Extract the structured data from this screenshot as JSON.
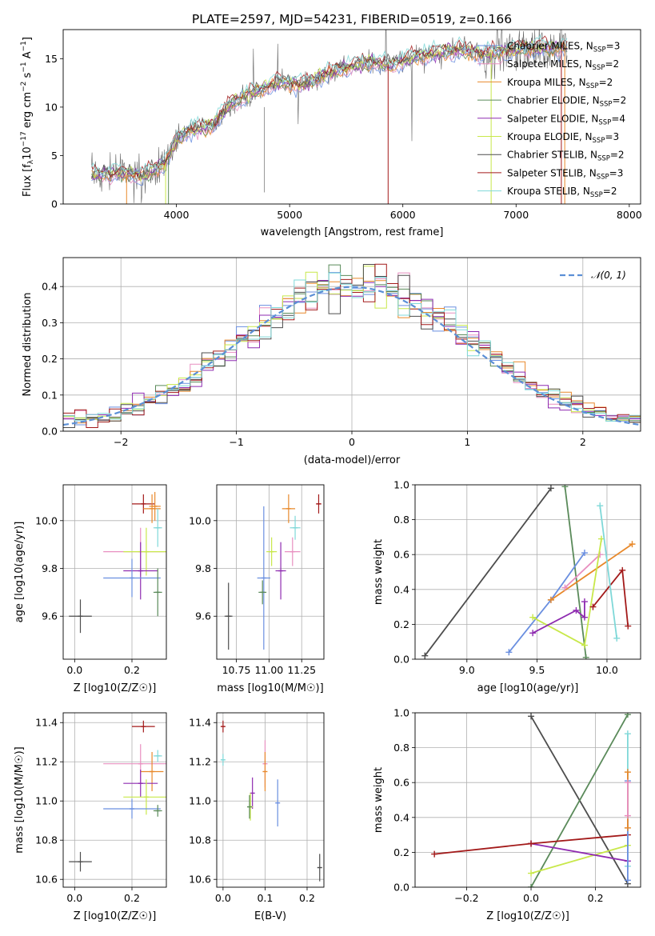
{
  "figure_title": "PLATE=2597, MJD=54231, FIBERID=0519, z=0.166",
  "colors": {
    "chabrier_miles": "#4c72b0",
    "salpeter_miles": "#dd8452",
    "kroupa_miles": "#e8892b",
    "chabrier_elodie": "#5a8a5a",
    "salpeter_elodie": "#8e2bb0",
    "kroupa_elodie": "#c8e84a",
    "chabrier_stelib": "#4d4d4d",
    "salpeter_stelib": "#a31a1a",
    "kroupa_stelib": "#7fd8d8",
    "data": "#666666",
    "normal": "#5b8fd6",
    "miles_blue": "#6a8fe0",
    "pink": "#e88fc0"
  },
  "chart_data": [
    {
      "id": "spectrum",
      "type": "line",
      "title": "PLATE=2597, MJD=54231, FIBERID=0519, z=0.166",
      "xlabel": "wavelength [Angstrom, rest frame]",
      "ylabel": "Flux [f_λ 10^-17 erg cm^-2 s^-1 A^-1]",
      "xlim": [
        3000,
        8100
      ],
      "ylim": [
        0,
        18
      ],
      "xticks": [
        "4000",
        "5000",
        "6000",
        "7000",
        "8000"
      ],
      "yticks": [
        "0",
        "5",
        "10",
        "15"
      ],
      "grid": false,
      "legend_position": "top-right",
      "legend": [
        {
          "name": "Chabrier MILES, N_SSP=3",
          "label": "Chabrier MILES, N",
          "sub": "SSP",
          "tail": "=3",
          "color": "#6a8fe0"
        },
        {
          "name": "Salpeter MILES, N_SSP=2",
          "label": "Salpeter MILES, N",
          "sub": "SSP",
          "tail": "=2",
          "color": "#e88fc0"
        },
        {
          "name": "Kroupa MILES, N_SSP=2",
          "label": "Kroupa MILES, N",
          "sub": "SSP",
          "tail": "=2",
          "color": "#e8892b"
        },
        {
          "name": "Chabrier ELODIE, N_SSP=2",
          "label": "Chabrier ELODIE, N",
          "sub": "SSP",
          "tail": "=2",
          "color": "#5a8a5a"
        },
        {
          "name": "Salpeter ELODIE, N_SSP=4",
          "label": "Salpeter ELODIE, N",
          "sub": "SSP",
          "tail": "=4",
          "color": "#8e2bb0"
        },
        {
          "name": "Kroupa ELODIE, N_SSP=3",
          "label": "Kroupa ELODIE, N",
          "sub": "SSP",
          "tail": "=3",
          "color": "#c8e84a"
        },
        {
          "name": "Chabrier STELIB, N_SSP=2",
          "label": "Chabrier STELIB, N",
          "sub": "SSP",
          "tail": "=2",
          "color": "#4d4d4d"
        },
        {
          "name": "Salpeter STELIB, N_SSP=3",
          "label": "Salpeter STELIB, N",
          "sub": "SSP",
          "tail": "=3",
          "color": "#a31a1a"
        },
        {
          "name": "Kroupa STELIB, N_SSP=2",
          "label": "Kroupa STELIB, N",
          "sub": "SSP",
          "tail": "=2",
          "color": "#7fd8d8"
        }
      ],
      "continuum": {
        "x": [
          3250,
          3500,
          3700,
          3900,
          4000,
          4100,
          4300,
          4500,
          4700,
          4900,
          5100,
          5300,
          5500,
          5700,
          5900,
          6100,
          6300,
          6500,
          6700,
          6900,
          7100,
          7300,
          7450
        ],
        "y": [
          3.0,
          3.2,
          2.9,
          4.2,
          6.6,
          7.6,
          8.0,
          10.5,
          11.6,
          12.6,
          12.3,
          13.3,
          14.1,
          14.6,
          14.4,
          15.2,
          15.6,
          15.9,
          15.5,
          15.8,
          16.0,
          16.1,
          16.2
        ]
      }
    },
    {
      "id": "residuals",
      "type": "histogram",
      "xlabel": "(data-model)/error",
      "ylabel": "Normed distribution",
      "xlim": [
        -2.5,
        2.5
      ],
      "ylim": [
        0,
        0.48
      ],
      "xticks": [
        "-2",
        "-1",
        "0",
        "1",
        "2"
      ],
      "yticks": [
        "0.0",
        "0.1",
        "0.2",
        "0.3",
        "0.4"
      ],
      "grid": true,
      "legend_position": "top-right",
      "legend": [
        {
          "label": "𝒩(0, 1)"
        }
      ],
      "bin_width": 0.1,
      "bins_from": -2.5,
      "bins_to": 2.5
    },
    {
      "id": "age_vs_Z",
      "type": "errorbar",
      "xlabel": "Z [log10(Z/Z☉)]",
      "ylabel": "age [log10(age/yr)]",
      "xlim": [
        -0.04,
        0.32
      ],
      "ylim": [
        9.42,
        10.15
      ],
      "xticks": [
        "0.0",
        "0.2"
      ],
      "yticks": [
        "9.6",
        "9.8",
        "10.0"
      ],
      "grid": true,
      "points": [
        {
          "x": 0.24,
          "xerr": 0.04,
          "y": 10.07,
          "yerr": 0.04,
          "color": "#a31a1a"
        },
        {
          "x": 0.27,
          "xerr": 0.03,
          "y": 10.05,
          "yerr": 0.06,
          "color": "#e8892b"
        },
        {
          "x": 0.28,
          "xerr": 0.02,
          "y": 10.06,
          "yerr": 0.06,
          "color": "#e8892b"
        },
        {
          "x": 0.23,
          "xerr": 0.13,
          "y": 9.87,
          "yerr": 0.1,
          "color": "#e88fc0"
        },
        {
          "x": 0.25,
          "xerr": 0.08,
          "y": 9.87,
          "yerr": 0.1,
          "color": "#c8e84a"
        },
        {
          "x": 0.23,
          "xerr": 0.06,
          "y": 9.79,
          "yerr": 0.12,
          "color": "#8e2bb0"
        },
        {
          "x": 0.2,
          "xerr": 0.1,
          "y": 9.76,
          "yerr": 0.08,
          "color": "#6a8fe0"
        },
        {
          "x": 0.29,
          "xerr": 0.015,
          "y": 9.7,
          "yerr": 0.1,
          "color": "#5a8a5a"
        },
        {
          "x": 0.29,
          "xerr": 0.015,
          "y": 9.97,
          "yerr": 0.08,
          "color": "#7fd8d8"
        },
        {
          "x": 0.02,
          "xerr": 0.04,
          "y": 9.6,
          "yerr": 0.07,
          "color": "#4d4d4d"
        }
      ]
    },
    {
      "id": "age_vs_mass",
      "type": "errorbar",
      "xlabel": "mass [log10(M/M☉)]",
      "ylabel": "",
      "xlim": [
        10.6,
        11.42
      ],
      "ylim": [
        9.42,
        10.15
      ],
      "xticks": [
        "10.75",
        "11.00",
        "11.25"
      ],
      "yticks": [
        "9.6",
        "9.8",
        "10.0"
      ],
      "grid": true,
      "points": [
        {
          "x": 11.38,
          "xerr": 0.02,
          "y": 10.07,
          "yerr": 0.04,
          "color": "#a31a1a"
        },
        {
          "x": 11.15,
          "xerr": 0.05,
          "y": 10.05,
          "yerr": 0.06,
          "color": "#e8892b"
        },
        {
          "x": 11.2,
          "xerr": 0.04,
          "y": 9.97,
          "yerr": 0.05,
          "color": "#7fd8d8"
        },
        {
          "x": 11.18,
          "xerr": 0.06,
          "y": 9.87,
          "yerr": 0.06,
          "color": "#e88fc0"
        },
        {
          "x": 11.02,
          "xerr": 0.04,
          "y": 9.87,
          "yerr": 0.06,
          "color": "#c8e84a"
        },
        {
          "x": 11.09,
          "xerr": 0.04,
          "y": 9.79,
          "yerr": 0.12,
          "color": "#8e2bb0"
        },
        {
          "x": 10.96,
          "xerr": 0.05,
          "y": 9.76,
          "yerr": 0.3,
          "color": "#6a8fe0"
        },
        {
          "x": 10.95,
          "xerr": 0.03,
          "y": 9.7,
          "yerr": 0.05,
          "color": "#5a8a5a"
        },
        {
          "x": 10.69,
          "xerr": 0.03,
          "y": 9.6,
          "yerr": 0.14,
          "color": "#4d4d4d"
        }
      ]
    },
    {
      "id": "weight_vs_age",
      "type": "line",
      "xlabel": "age [log10(age/yr)]",
      "ylabel": "mass weight",
      "xlim": [
        8.63,
        10.24
      ],
      "ylim": [
        0,
        1
      ],
      "xticks": [
        "9.0",
        "9.5",
        "10.0"
      ],
      "yticks": [
        "0.0",
        "0.2",
        "0.4",
        "0.6",
        "0.8",
        "1.0"
      ],
      "grid": true,
      "series": [
        {
          "color": "#4d4d4d",
          "x": [
            8.7,
            9.6
          ],
          "y": [
            0.02,
            0.98
          ]
        },
        {
          "color": "#5a8a5a",
          "x": [
            9.7,
            9.85
          ],
          "y": [
            0.99,
            0.01
          ]
        },
        {
          "color": "#6a8fe0",
          "x": [
            9.3,
            9.6,
            9.84
          ],
          "y": [
            0.04,
            0.34,
            0.61
          ]
        },
        {
          "color": "#e8892b",
          "x": [
            9.6,
            10.18
          ],
          "y": [
            0.34,
            0.66
          ]
        },
        {
          "color": "#e88fc0",
          "x": [
            9.7,
            9.95
          ],
          "y": [
            0.41,
            0.6
          ]
        },
        {
          "color": "#c8e84a",
          "x": [
            9.47,
            9.84,
            9.96
          ],
          "y": [
            0.24,
            0.08,
            0.69
          ]
        },
        {
          "color": "#8e2bb0",
          "x": [
            9.47,
            9.78,
            9.84,
            9.84
          ],
          "y": [
            0.15,
            0.28,
            0.24,
            0.33
          ]
        },
        {
          "color": "#a31a1a",
          "x": [
            9.9,
            10.11,
            10.15
          ],
          "y": [
            0.3,
            0.51,
            0.19
          ]
        },
        {
          "color": "#7fd8d8",
          "x": [
            9.95,
            10.07
          ],
          "y": [
            0.88,
            0.12
          ]
        }
      ]
    },
    {
      "id": "mass_vs_Z",
      "type": "errorbar",
      "xlabel": "Z [log10(Z/Z☉)]",
      "ylabel": "mass [log10(M/M☉)]",
      "xlim": [
        -0.04,
        0.32
      ],
      "ylim": [
        10.56,
        11.45
      ],
      "xticks": [
        "0.0",
        "0.2"
      ],
      "yticks": [
        "10.6",
        "10.8",
        "11.0",
        "11.2",
        "11.4"
      ],
      "grid": true,
      "points": [
        {
          "x": 0.24,
          "xerr": 0.04,
          "y": 11.38,
          "yerr": 0.03,
          "color": "#a31a1a"
        },
        {
          "x": 0.29,
          "xerr": 0.015,
          "y": 11.23,
          "yerr": 0.03,
          "color": "#7fd8d8"
        },
        {
          "x": 0.23,
          "xerr": 0.13,
          "y": 11.19,
          "yerr": 0.1,
          "color": "#e88fc0"
        },
        {
          "x": 0.27,
          "xerr": 0.04,
          "y": 11.15,
          "yerr": 0.1,
          "color": "#e8892b"
        },
        {
          "x": 0.23,
          "xerr": 0.06,
          "y": 11.09,
          "yerr": 0.07,
          "color": "#8e2bb0"
        },
        {
          "x": 0.25,
          "xerr": 0.08,
          "y": 11.02,
          "yerr": 0.09,
          "color": "#c8e84a"
        },
        {
          "x": 0.2,
          "xerr": 0.1,
          "y": 10.96,
          "yerr": 0.05,
          "color": "#6a8fe0"
        },
        {
          "x": 0.29,
          "xerr": 0.015,
          "y": 10.95,
          "yerr": 0.03,
          "color": "#5a8a5a"
        },
        {
          "x": 0.02,
          "xerr": 0.04,
          "y": 10.69,
          "yerr": 0.05,
          "color": "#4d4d4d"
        }
      ]
    },
    {
      "id": "mass_vs_ebv",
      "type": "errorbar",
      "xlabel": "E(B-V)",
      "ylabel": "",
      "xlim": [
        -0.015,
        0.24
      ],
      "ylim": [
        10.56,
        11.45
      ],
      "xticks": [
        "0.0",
        "0.1",
        "0.2"
      ],
      "yticks": [
        "10.6",
        "10.8",
        "11.0",
        "11.2",
        "11.4"
      ],
      "grid": true,
      "points": [
        {
          "x": 0.0,
          "xerr": 0.0,
          "y": 11.38,
          "yerr": 0.03,
          "color": "#a31a1a"
        },
        {
          "x": 0.0,
          "xerr": 0.0,
          "y": 11.21,
          "yerr": 0.03,
          "color": "#7fd8d8"
        },
        {
          "x": 0.1,
          "xerr": 0.0,
          "y": 11.19,
          "yerr": 0.12,
          "color": "#e88fc0"
        },
        {
          "x": 0.1,
          "xerr": 0.0,
          "y": 11.15,
          "yerr": 0.1,
          "color": "#e8892b"
        },
        {
          "x": 0.07,
          "xerr": 0.0,
          "y": 11.04,
          "yerr": 0.08,
          "color": "#8e2bb0"
        },
        {
          "x": 0.065,
          "xerr": 0.0,
          "y": 10.97,
          "yerr": 0.07,
          "color": "#c8e84a"
        },
        {
          "x": 0.13,
          "xerr": 0.0,
          "y": 10.99,
          "yerr": 0.12,
          "color": "#6a8fe0"
        },
        {
          "x": 0.063,
          "xerr": 0.0,
          "y": 10.97,
          "yerr": 0.06,
          "color": "#5a8a5a"
        },
        {
          "x": 0.23,
          "xerr": 0.0,
          "y": 10.66,
          "yerr": 0.07,
          "color": "#4d4d4d"
        }
      ]
    },
    {
      "id": "weight_vs_Z",
      "type": "line",
      "xlabel": "Z [log10(Z/Z☉)]",
      "ylabel": "mass weight",
      "xlim": [
        -0.36,
        0.34
      ],
      "ylim": [
        0,
        1
      ],
      "xticks": [
        "-0.2",
        "0.0",
        "0.2"
      ],
      "yticks": [
        "0.0",
        "0.2",
        "0.4",
        "0.6",
        "0.8",
        "1.0"
      ],
      "grid": true,
      "series": [
        {
          "color": "#4d4d4d",
          "x": [
            0.0,
            0.3
          ],
          "y": [
            0.98,
            0.02
          ]
        },
        {
          "color": "#5a8a5a",
          "x": [
            0.0,
            0.3
          ],
          "y": [
            0.0,
            0.99
          ]
        },
        {
          "color": "#c8e84a",
          "x": [
            0.0,
            0.3
          ],
          "y": [
            0.08,
            0.24
          ]
        },
        {
          "color": "#8e2bb0",
          "x": [
            0.0,
            0.3
          ],
          "y": [
            0.25,
            0.15
          ]
        },
        {
          "color": "#a31a1a",
          "x": [
            -0.3,
            0.0,
            0.3
          ],
          "y": [
            0.19,
            0.25,
            0.3
          ]
        },
        {
          "color": "#7fd8d8",
          "x": [
            0.3,
            0.3
          ],
          "y": [
            0.88,
            0.12
          ]
        },
        {
          "color": "#6a8fe0",
          "x": [
            0.3,
            0.3
          ],
          "y": [
            0.61,
            0.04
          ]
        },
        {
          "color": "#e8892b",
          "x": [
            0.3,
            0.3
          ],
          "y": [
            0.66,
            0.34
          ]
        },
        {
          "color": "#e88fc0",
          "x": [
            0.3,
            0.3
          ],
          "y": [
            0.6,
            0.41
          ]
        }
      ]
    }
  ]
}
